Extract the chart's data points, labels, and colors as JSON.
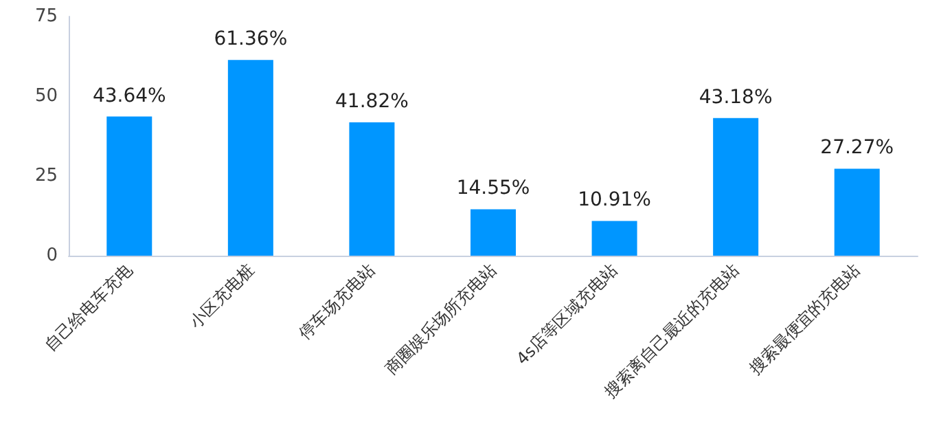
{
  "chart_data": {
    "type": "bar",
    "categories": [
      "自己给电车充电",
      "小区充电桩",
      "停车场充电站",
      "商圈娱乐场所充电站",
      "4s店等区域充电站",
      "搜索离自己最近的充电站",
      "搜索最便宜的充电站"
    ],
    "values": [
      43.64,
      61.36,
      41.82,
      14.55,
      10.91,
      43.18,
      27.27
    ],
    "value_labels": [
      "43.64%",
      "61.36%",
      "41.82%",
      "14.55%",
      "10.91%",
      "43.18%",
      "27.27%"
    ],
    "color": "#0096ff",
    "ylim": [
      0,
      75
    ],
    "yticks": [
      0,
      25,
      50,
      75
    ],
    "grid": false
  }
}
